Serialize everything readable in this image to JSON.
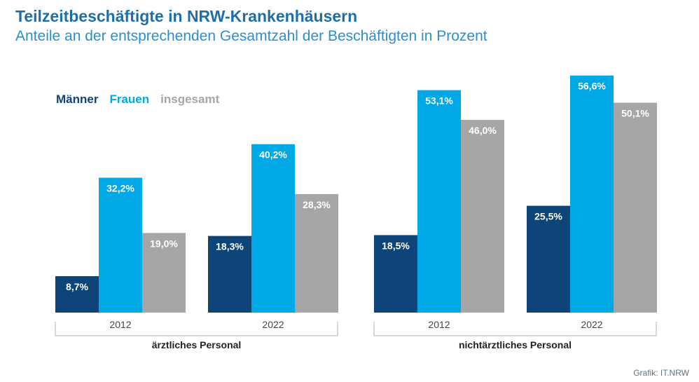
{
  "header": {
    "title": "Teilzeitbeschäftigte in NRW-Krankenhäusern",
    "subtitle": "Anteile an der entsprechenden Gesamtzahl der Beschäftigten in Prozent"
  },
  "legend": [
    {
      "label": "Männer",
      "color": "#0d4579"
    },
    {
      "label": "Frauen",
      "color": "#00a9e6"
    },
    {
      "label": "insgesamt",
      "color": "#a6a6a6"
    }
  ],
  "credit": "Grafik: IT.NRW",
  "chart_data": {
    "type": "bar",
    "unit": "%",
    "ylim": [
      0,
      60
    ],
    "grid": false,
    "legend_position": "top-left",
    "series": [
      {
        "name": "Männer",
        "color": "#0d4579"
      },
      {
        "name": "Frauen",
        "color": "#00a9e6"
      },
      {
        "name": "insgesamt",
        "color": "#a6a6a6"
      }
    ],
    "groups": [
      {
        "label": "ärztliches Personal",
        "categories": [
          {
            "label": "2012",
            "values": [
              8.7,
              32.2,
              19.0
            ],
            "value_labels": [
              "8,7%",
              "32,2%",
              "19,0%"
            ]
          },
          {
            "label": "2022",
            "values": [
              18.3,
              40.2,
              28.3
            ],
            "value_labels": [
              "18,3%",
              "40,2%",
              "28,3%"
            ]
          }
        ]
      },
      {
        "label": "nichtärztliches Personal",
        "categories": [
          {
            "label": "2012",
            "values": [
              18.5,
              53.1,
              46.0
            ],
            "value_labels": [
              "18,5%",
              "53,1%",
              "46,0%"
            ]
          },
          {
            "label": "2022",
            "values": [
              25.5,
              56.6,
              50.1
            ],
            "value_labels": [
              "25,5%",
              "56,6%",
              "50,1%"
            ]
          }
        ]
      }
    ]
  }
}
